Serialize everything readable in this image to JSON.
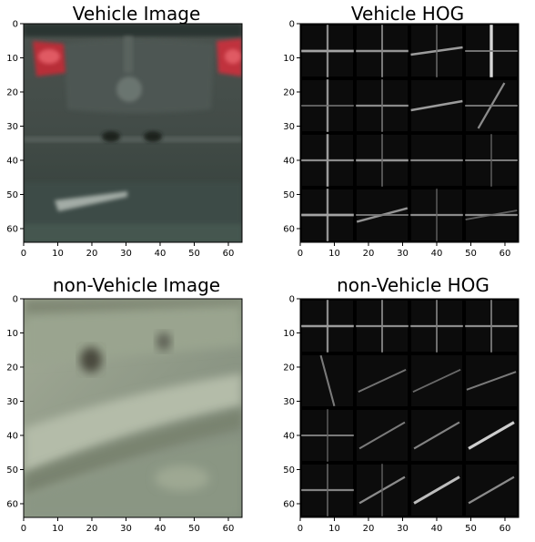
{
  "panels": [
    {
      "id": "vehicle-image",
      "title": "Vehicle Image",
      "kind": "photo-vehicle"
    },
    {
      "id": "vehicle-hog",
      "title": "Vehicle HOG",
      "kind": "hog"
    },
    {
      "id": "nonvehicle-image",
      "title": "non-Vehicle Image",
      "kind": "photo-road"
    },
    {
      "id": "nonvehicle-hog",
      "title": "non-Vehicle HOG",
      "kind": "hog"
    }
  ],
  "x_ticks": [
    "0",
    "10",
    "20",
    "30",
    "40",
    "50",
    "60"
  ],
  "y_ticks": [
    "0",
    "10",
    "20",
    "30",
    "40",
    "50",
    "60"
  ],
  "x_tick_values": [
    0,
    10,
    20,
    30,
    40,
    50,
    60
  ],
  "y_tick_values": [
    0,
    10,
    20,
    30,
    40,
    50,
    60
  ],
  "axis_range": [
    0,
    64
  ],
  "colors": {
    "hog_background": "#000000",
    "vehicle_body": "#3e4743",
    "tail_light": "#c4323c",
    "road_surface": "#8e9a88"
  }
}
